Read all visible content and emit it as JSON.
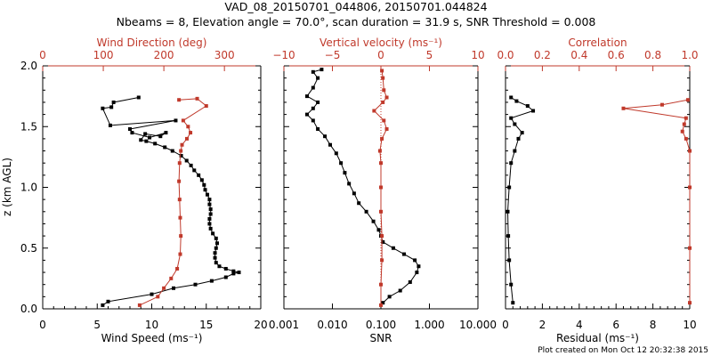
{
  "figure": {
    "title_line1": "VAD_08_20150701_044806, 20150701.044824",
    "title_line2": "Nbeams = 8, Elevation angle = 70.0°, scan duration = 31.9 s, SNR Threshold = 0.008",
    "credit": "Plot created on Mon Oct 12 20:32:38 2015",
    "y_label": "z (km AGL)",
    "y_ticks": [
      "0.0",
      "0.5",
      "1.0",
      "1.5",
      "2.0"
    ],
    "colors": {
      "primary": "#000000",
      "secondary": "#c0392b"
    }
  },
  "chart_data": [
    {
      "type": "line",
      "bottom_axis": {
        "label": "Wind Speed (ms⁻¹)",
        "ticks": [
          "0",
          "5",
          "10",
          "15",
          "20"
        ],
        "range": [
          0,
          20
        ]
      },
      "top_axis": {
        "label": "Wind Direction (deg)",
        "ticks": [
          "0",
          "100",
          "200",
          "300"
        ],
        "range": [
          0,
          360
        ]
      },
      "ylim": [
        0,
        2
      ],
      "series": [
        {
          "axis": "bottom",
          "color": "#000000",
          "points": [
            [
              5.5,
              0.03
            ],
            [
              6,
              0.06
            ],
            [
              10,
              0.12
            ],
            [
              12,
              0.17
            ],
            [
              14,
              0.2
            ],
            [
              15.5,
              0.23
            ],
            [
              16.8,
              0.26
            ],
            [
              17.5,
              0.29
            ],
            [
              18,
              0.3
            ],
            [
              17.5,
              0.31
            ],
            [
              16.8,
              0.33
            ],
            [
              16.2,
              0.35
            ],
            [
              15.9,
              0.38
            ],
            [
              15.8,
              0.42
            ],
            [
              15.8,
              0.46
            ],
            [
              15.9,
              0.5
            ],
            [
              16,
              0.54
            ],
            [
              15.9,
              0.58
            ],
            [
              15.6,
              0.62
            ],
            [
              15.4,
              0.66
            ],
            [
              15.3,
              0.7
            ],
            [
              15.3,
              0.74
            ],
            [
              15.4,
              0.78
            ],
            [
              15.4,
              0.82
            ],
            [
              15.3,
              0.86
            ],
            [
              15.3,
              0.9
            ],
            [
              15.1,
              0.94
            ],
            [
              14.9,
              0.98
            ],
            [
              14.8,
              1.02
            ],
            [
              14.6,
              1.06
            ],
            [
              14.3,
              1.1
            ],
            [
              13.9,
              1.14
            ],
            [
              13.6,
              1.18
            ],
            [
              13.2,
              1.22
            ],
            [
              12.7,
              1.26
            ],
            [
              11.9,
              1.3
            ],
            [
              11.2,
              1.33
            ],
            [
              10.3,
              1.36
            ],
            [
              9.5,
              1.38
            ],
            [
              9,
              1.39
            ],
            [
              9.4,
              1.44
            ],
            [
              10.8,
              1.42
            ],
            [
              11.3,
              1.45
            ],
            [
              9.8,
              1.41
            ],
            [
              8.2,
              1.45
            ],
            [
              8,
              1.48
            ],
            [
              12.2,
              1.55
            ],
            [
              6.2,
              1.51
            ],
            [
              5.5,
              1.65
            ],
            [
              6.3,
              1.66
            ],
            [
              6.5,
              1.7
            ],
            [
              8.8,
              1.74
            ]
          ]
        },
        {
          "axis": "top",
          "color": "#c0392b",
          "points": [
            [
              160,
              0.03
            ],
            [
              190,
              0.1
            ],
            [
              200,
              0.17
            ],
            [
              212,
              0.25
            ],
            [
              222,
              0.33
            ],
            [
              227,
              0.45
            ],
            [
              228,
              0.6
            ],
            [
              227,
              0.75
            ],
            [
              226,
              0.9
            ],
            [
              225,
              1.05
            ],
            [
              226,
              1.2
            ],
            [
              228,
              1.3
            ],
            [
              230,
              1.35
            ],
            [
              238,
              1.4
            ],
            [
              244,
              1.45
            ],
            [
              240,
              1.5
            ],
            [
              232,
              1.55
            ],
            [
              270,
              1.67
            ],
            [
              255,
              1.73
            ],
            [
              225,
              1.72
            ]
          ]
        }
      ]
    },
    {
      "type": "line",
      "bottom_axis": {
        "label": "SNR",
        "ticks": [
          "0.001",
          "0.010",
          "0.100",
          "1.000",
          "10.000"
        ],
        "range": [
          0.001,
          10
        ],
        "scale": "log"
      },
      "top_axis": {
        "label": "Vertical velocity (ms⁻¹)",
        "ticks": [
          "−10",
          "−5",
          "0",
          "5",
          "10"
        ],
        "range": [
          -10,
          10
        ],
        "zero_line": true
      },
      "ylim": [
        0,
        2
      ],
      "series": [
        {
          "axis": "bottom",
          "color": "#000000",
          "points": [
            [
              0.11,
              0.05
            ],
            [
              0.15,
              0.1
            ],
            [
              0.25,
              0.15
            ],
            [
              0.4,
              0.22
            ],
            [
              0.55,
              0.3
            ],
            [
              0.6,
              0.35
            ],
            [
              0.5,
              0.4
            ],
            [
              0.3,
              0.45
            ],
            [
              0.18,
              0.5
            ],
            [
              0.11,
              0.55
            ],
            [
              0.1,
              0.6
            ],
            [
              0.09,
              0.65
            ],
            [
              0.07,
              0.72
            ],
            [
              0.05,
              0.8
            ],
            [
              0.035,
              0.87
            ],
            [
              0.028,
              0.95
            ],
            [
              0.022,
              1.03
            ],
            [
              0.018,
              1.12
            ],
            [
              0.015,
              1.2
            ],
            [
              0.012,
              1.28
            ],
            [
              0.009,
              1.35
            ],
            [
              0.007,
              1.42
            ],
            [
              0.005,
              1.48
            ],
            [
              0.004,
              1.55
            ],
            [
              0.003,
              1.6
            ],
            [
              0.004,
              1.65
            ],
            [
              0.005,
              1.7
            ],
            [
              0.003,
              1.75
            ],
            [
              0.004,
              1.82
            ],
            [
              0.005,
              1.9
            ],
            [
              0.004,
              1.95
            ],
            [
              0.006,
              1.97
            ]
          ]
        },
        {
          "axis": "top",
          "color": "#c0392b",
          "points": [
            [
              0,
              0.03
            ],
            [
              0,
              0.2
            ],
            [
              0.1,
              0.4
            ],
            [
              0.1,
              0.6
            ],
            [
              0,
              0.8
            ],
            [
              0,
              1.0
            ],
            [
              0,
              1.2
            ],
            [
              -0.1,
              1.3
            ],
            [
              0.1,
              1.4
            ],
            [
              0.6,
              1.48
            ],
            [
              0.3,
              1.55
            ],
            [
              -0.7,
              1.63
            ],
            [
              0.2,
              1.7
            ],
            [
              0.6,
              1.74
            ],
            [
              0.3,
              1.8
            ],
            [
              0.2,
              1.9
            ],
            [
              0.1,
              1.96
            ]
          ]
        }
      ]
    },
    {
      "type": "line",
      "bottom_axis": {
        "label": "Residual (ms⁻¹)",
        "ticks": [
          "0",
          "2",
          "4",
          "6",
          "8",
          "10"
        ],
        "range": [
          0,
          10
        ]
      },
      "top_axis": {
        "label": "Correlation",
        "ticks": [
          "0.0",
          "0.2",
          "0.4",
          "0.6",
          "0.8",
          "1.0"
        ],
        "range": [
          0,
          1
        ]
      },
      "ylim": [
        0,
        2
      ],
      "series": [
        {
          "axis": "bottom",
          "color": "#000000",
          "points": [
            [
              0.4,
              0.05
            ],
            [
              0.3,
              0.2
            ],
            [
              0.2,
              0.4
            ],
            [
              0.15,
              0.6
            ],
            [
              0.12,
              0.8
            ],
            [
              0.2,
              1.0
            ],
            [
              0.3,
              1.2
            ],
            [
              0.5,
              1.3
            ],
            [
              0.7,
              1.4
            ],
            [
              0.9,
              1.45
            ],
            [
              0.5,
              1.52
            ],
            [
              0.3,
              1.57
            ],
            [
              1.5,
              1.63
            ],
            [
              1.2,
              1.67
            ],
            [
              0.6,
              1.71
            ],
            [
              0.3,
              1.74
            ]
          ]
        },
        {
          "axis": "top",
          "color": "#c0392b",
          "points": [
            [
              1.0,
              0.05
            ],
            [
              1.0,
              0.5
            ],
            [
              1.0,
              1.0
            ],
            [
              1.0,
              1.3
            ],
            [
              0.98,
              1.4
            ],
            [
              0.96,
              1.46
            ],
            [
              0.97,
              1.52
            ],
            [
              0.98,
              1.57
            ],
            [
              0.64,
              1.65
            ],
            [
              0.85,
              1.68
            ],
            [
              0.99,
              1.72
            ]
          ]
        }
      ]
    }
  ]
}
